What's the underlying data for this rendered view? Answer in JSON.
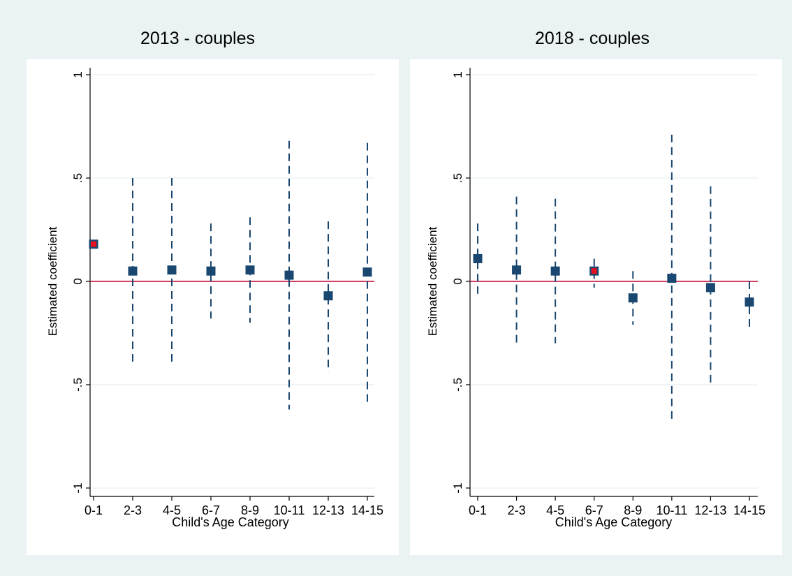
{
  "colors": {
    "background": "#eaf2f3",
    "plot_background": "#ffffff",
    "marker": "#1a476f",
    "highlight_marker": "#e8101e",
    "ci_line": "#1a476f",
    "zero_line": "#c10534",
    "gridline": "#eaf2f3",
    "axis": "#000000"
  },
  "chart_data": [
    {
      "type": "scatter",
      "title": "2013 - couples",
      "xlabel": "Child's Age Category",
      "ylabel": "Estimated coefficient",
      "categories": [
        "0-1",
        "2-3",
        "4-5",
        "6-7",
        "8-9",
        "10-11",
        "12-13",
        "14-15"
      ],
      "ylim": [
        -1,
        1
      ],
      "yticks": [
        -1,
        -0.5,
        0,
        0.5,
        1
      ],
      "ytick_labels": [
        "-1",
        "-.5",
        "0",
        ".5",
        "1"
      ],
      "grid": true,
      "reference_line": 0,
      "series": [
        {
          "estimates": [
            0.18,
            0.05,
            0.055,
            0.05,
            0.055,
            0.03,
            -0.07,
            0.045
          ],
          "ci_low": [
            0.18,
            -0.4,
            -0.4,
            -0.18,
            -0.2,
            -0.62,
            -0.44,
            -0.59
          ],
          "ci_high": [
            0.18,
            0.5,
            0.5,
            0.28,
            0.31,
            0.68,
            0.29,
            0.67
          ],
          "highlight_index": 0
        }
      ]
    },
    {
      "type": "scatter",
      "title": "2018 - couples",
      "xlabel": "Child's Age Category",
      "ylabel": "Estimated coefficient",
      "categories": [
        "0-1",
        "2-3",
        "4-5",
        "6-7",
        "8-9",
        "10-11",
        "12-13",
        "14-15"
      ],
      "ylim": [
        -1,
        1
      ],
      "yticks": [
        -1,
        -0.5,
        0,
        0.5,
        1
      ],
      "ytick_labels": [
        "-1",
        "-.5",
        "0",
        ".5",
        "1"
      ],
      "grid": true,
      "reference_line": 0,
      "series": [
        {
          "estimates": [
            0.11,
            0.055,
            0.05,
            0.05,
            -0.08,
            0.015,
            -0.03,
            -0.1
          ],
          "ci_low": [
            -0.06,
            -0.3,
            -0.3,
            -0.03,
            -0.21,
            -0.68,
            -0.51,
            -0.22
          ],
          "ci_high": [
            0.28,
            0.41,
            0.4,
            0.11,
            0.05,
            0.71,
            0.46,
            0.0
          ],
          "highlight_index": 3
        }
      ]
    }
  ]
}
